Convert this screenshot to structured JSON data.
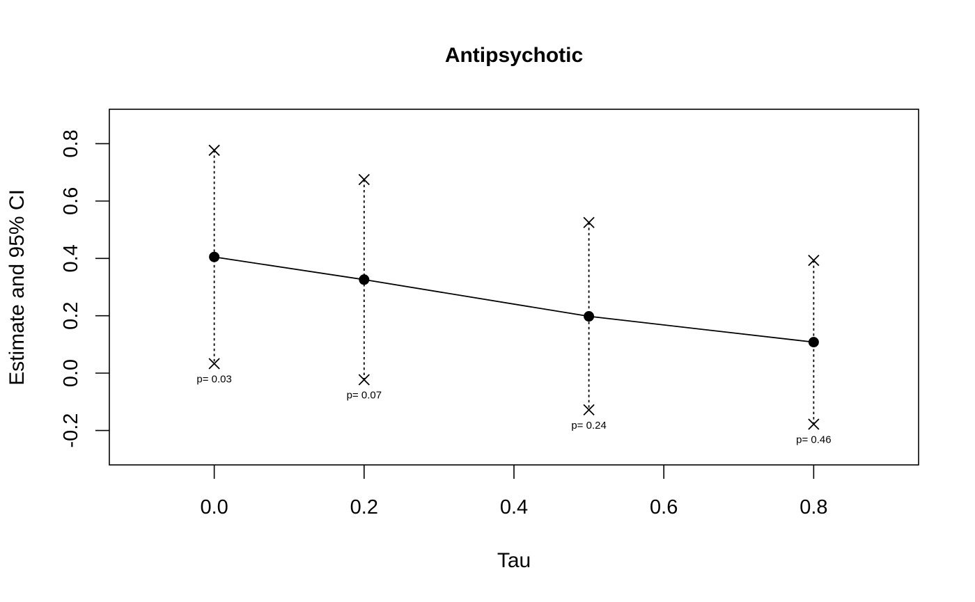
{
  "chart_data": {
    "type": "scatter",
    "title": "Antipsychotic",
    "xlabel": "Tau",
    "ylabel": "Estimate and 95% CI",
    "xlim": [
      -0.14,
      0.94
    ],
    "ylim": [
      -0.32,
      0.92
    ],
    "x_ticks": [
      0.0,
      0.2,
      0.4,
      0.6,
      0.8
    ],
    "x_tick_labels": [
      "0.0",
      "0.2",
      "0.4",
      "0.6",
      "0.8"
    ],
    "y_ticks": [
      -0.2,
      0.0,
      0.2,
      0.4,
      0.6,
      0.8
    ],
    "y_tick_labels": [
      "-0.2",
      "0.0",
      "0.2",
      "0.4",
      "0.6",
      "0.8"
    ],
    "grid": false,
    "legend": false,
    "line_color": "#000000",
    "points": [
      {
        "x": 0.0,
        "estimate": 0.405,
        "lower": 0.033,
        "upper": 0.777,
        "p_label": "p= 0.03"
      },
      {
        "x": 0.2,
        "estimate": 0.326,
        "lower": -0.023,
        "upper": 0.675,
        "p_label": "p= 0.07"
      },
      {
        "x": 0.5,
        "estimate": 0.198,
        "lower": -0.128,
        "upper": 0.525,
        "p_label": "p= 0.24"
      },
      {
        "x": 0.8,
        "estimate": 0.108,
        "lower": -0.178,
        "upper": 0.393,
        "p_label": "p= 0.46"
      }
    ]
  }
}
